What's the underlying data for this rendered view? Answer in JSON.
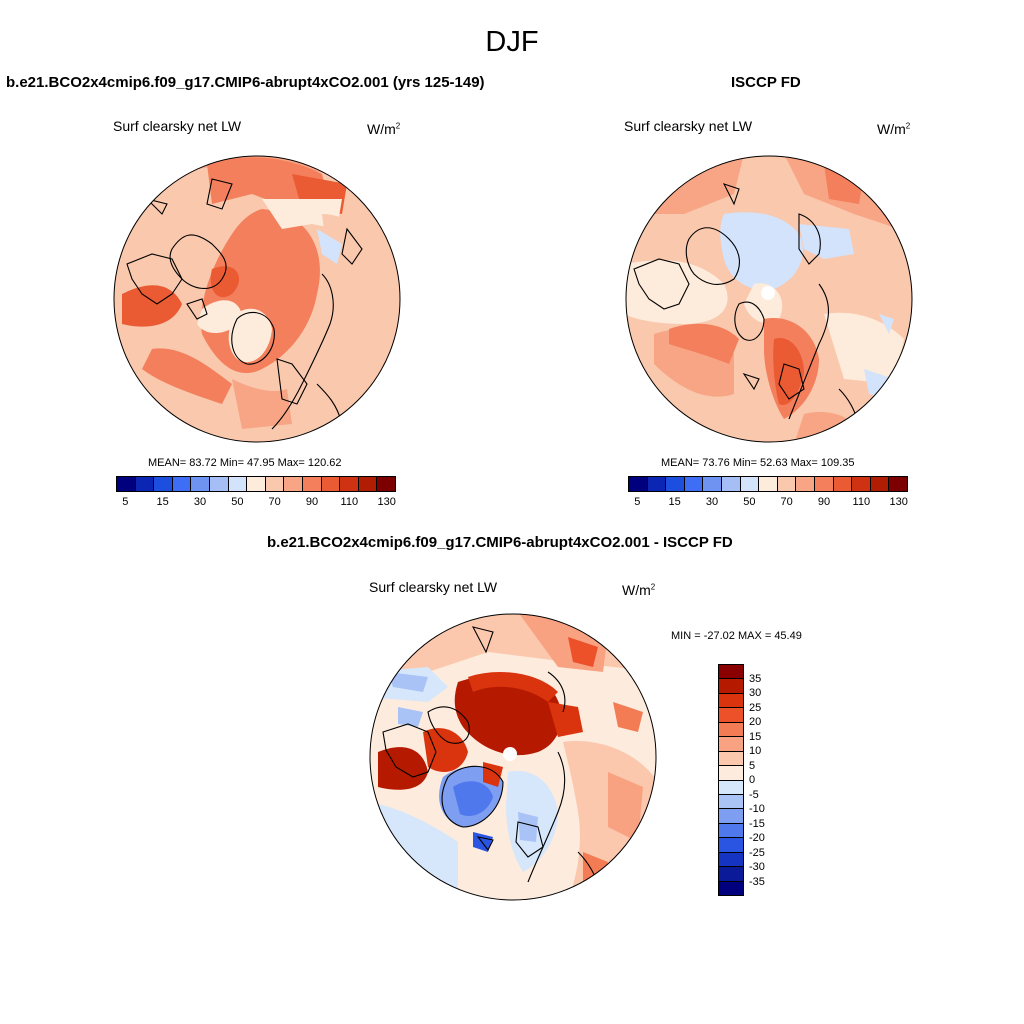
{
  "season": "DJF",
  "panels": {
    "model": {
      "title": "b.e21.BCO2x4cmip6.f09_g17.CMIP6-abrupt4xCO2.001 (yrs 125-149)",
      "variable": "Surf clearsky net LW",
      "units_base": "W/m",
      "units_exp": "2",
      "stats_text": "MEAN=  83.72  Min=  47.95  Max= 120.62",
      "mean": 83.72,
      "min": 47.95,
      "max": 120.62
    },
    "obs": {
      "title": "ISCCP FD",
      "variable": "Surf clearsky net LW",
      "units_base": "W/m",
      "units_exp": "2",
      "stats_text": "MEAN=  73.76  Min=  52.63  Max= 109.35",
      "mean": 73.76,
      "min": 52.63,
      "max": 109.35
    },
    "diff": {
      "title": "b.e21.BCO2x4cmip6.f09_g17.CMIP6-abrupt4xCO2.001 - ISCCP FD",
      "variable": "Surf clearsky net LW",
      "units_base": "W/m",
      "units_exp": "2",
      "stats_text": "MIN = -27.02 MAX =  45.49",
      "min": -27.02,
      "max": 45.49
    }
  },
  "colorbar_abs": {
    "tick_labels": [
      "5",
      "15",
      "30",
      "50",
      "70",
      "90",
      "110",
      "130"
    ],
    "colors": [
      "#00007f",
      "#0a26b3",
      "#1c4fe0",
      "#3d6ef5",
      "#6f93f0",
      "#a5bef5",
      "#d3e3fb",
      "#fdebdc",
      "#f9c8ad",
      "#f7a585",
      "#f37f5c",
      "#ea5a33",
      "#cf3212",
      "#b01d03",
      "#7d0000"
    ]
  },
  "colorbar_diff": {
    "tick_labels": [
      "35",
      "30",
      "25",
      "20",
      "15",
      "10",
      "5",
      "0",
      "-5",
      "-10",
      "-15",
      "-20",
      "-25",
      "-30",
      "-35"
    ],
    "colors": [
      "#8a0000",
      "#b51a00",
      "#d9340e",
      "#ec5129",
      "#f47c55",
      "#f8a282",
      "#fcc8ad",
      "#fdebdd",
      "#d6e6fb",
      "#aac3f6",
      "#7e9ef1",
      "#4f78ec",
      "#2a55e3",
      "#1634c2",
      "#0a1a98",
      "#00007f"
    ]
  }
}
